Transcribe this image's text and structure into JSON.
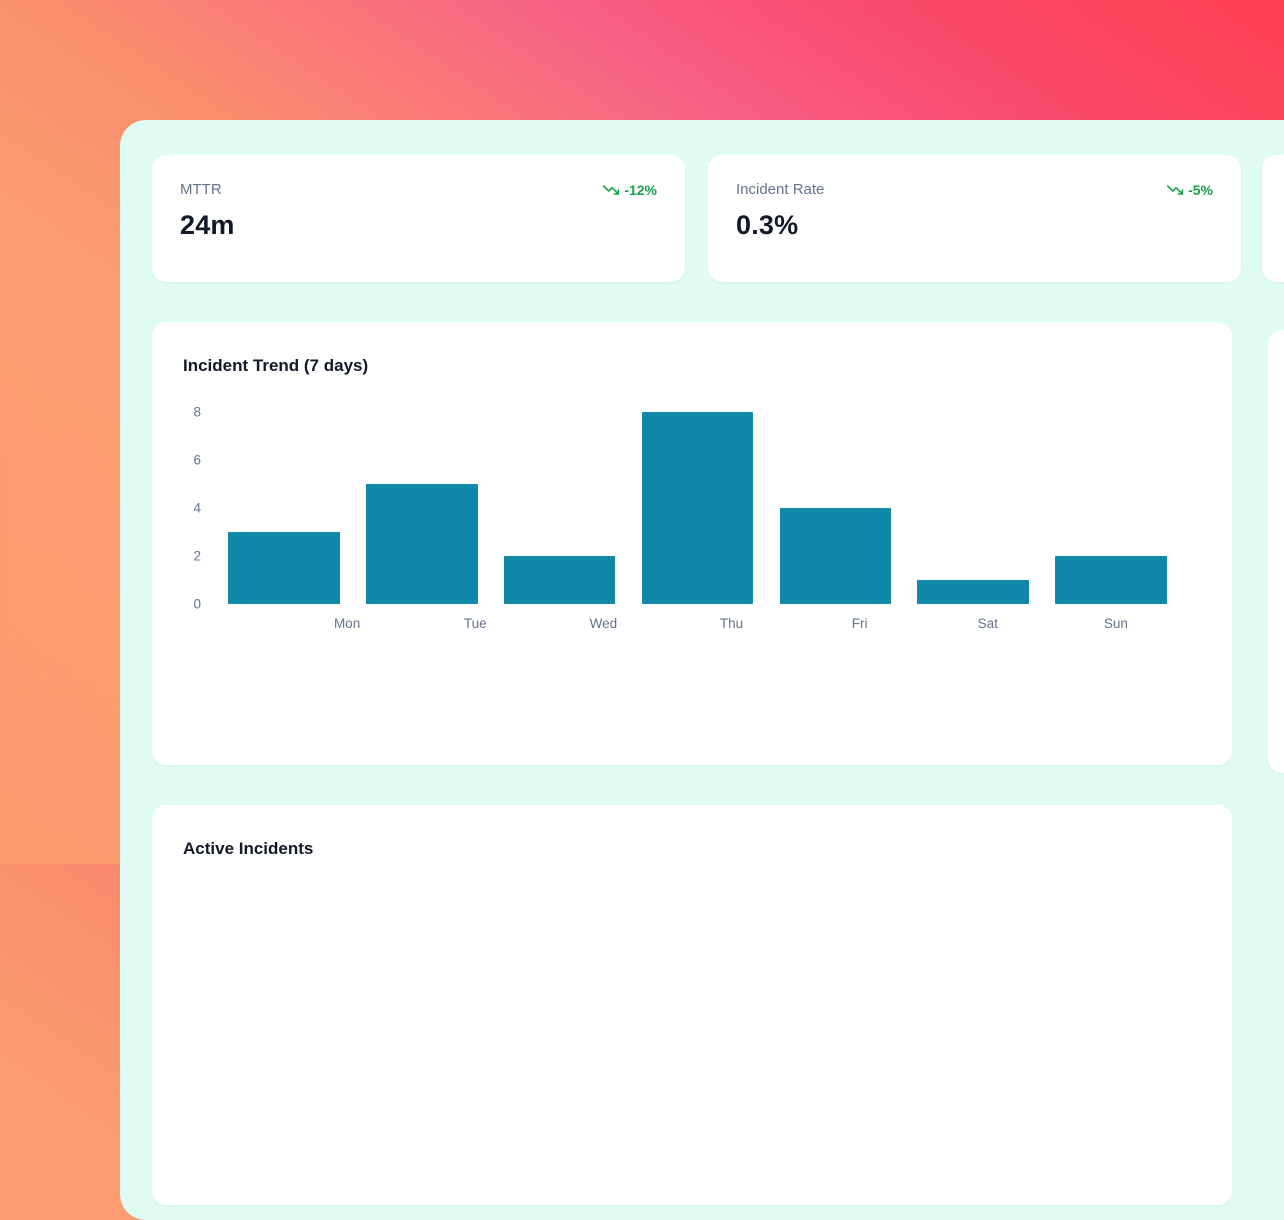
{
  "stats": [
    {
      "label": "MTTR",
      "value": "24m",
      "delta": "-12%"
    },
    {
      "label": "Incident Rate",
      "value": "0.3%",
      "delta": "-5%"
    }
  ],
  "chart_data": {
    "type": "bar",
    "title": "Incident Trend (7 days)",
    "categories": [
      "Mon",
      "Tue",
      "Wed",
      "Thu",
      "Fri",
      "Sat",
      "Sun"
    ],
    "values": [
      3,
      5,
      2,
      8,
      4,
      1,
      2
    ],
    "xlabel": "",
    "ylabel": "",
    "ylim": [
      0,
      8
    ],
    "yticks": [
      0,
      2,
      4,
      6,
      8
    ],
    "grid": false,
    "legend": false,
    "bar_color": "#0e87a8"
  },
  "sections": {
    "active_incidents_title": "Active Incidents"
  },
  "colors": {
    "panel_background": "#e0faf4",
    "delta_green": "#16a34a",
    "bar_teal": "#0e87a8",
    "gradient_orange": "#fb9a6d",
    "gradient_pink": "#ff4152",
    "text_dark": "#111827",
    "text_muted": "#64748b"
  }
}
